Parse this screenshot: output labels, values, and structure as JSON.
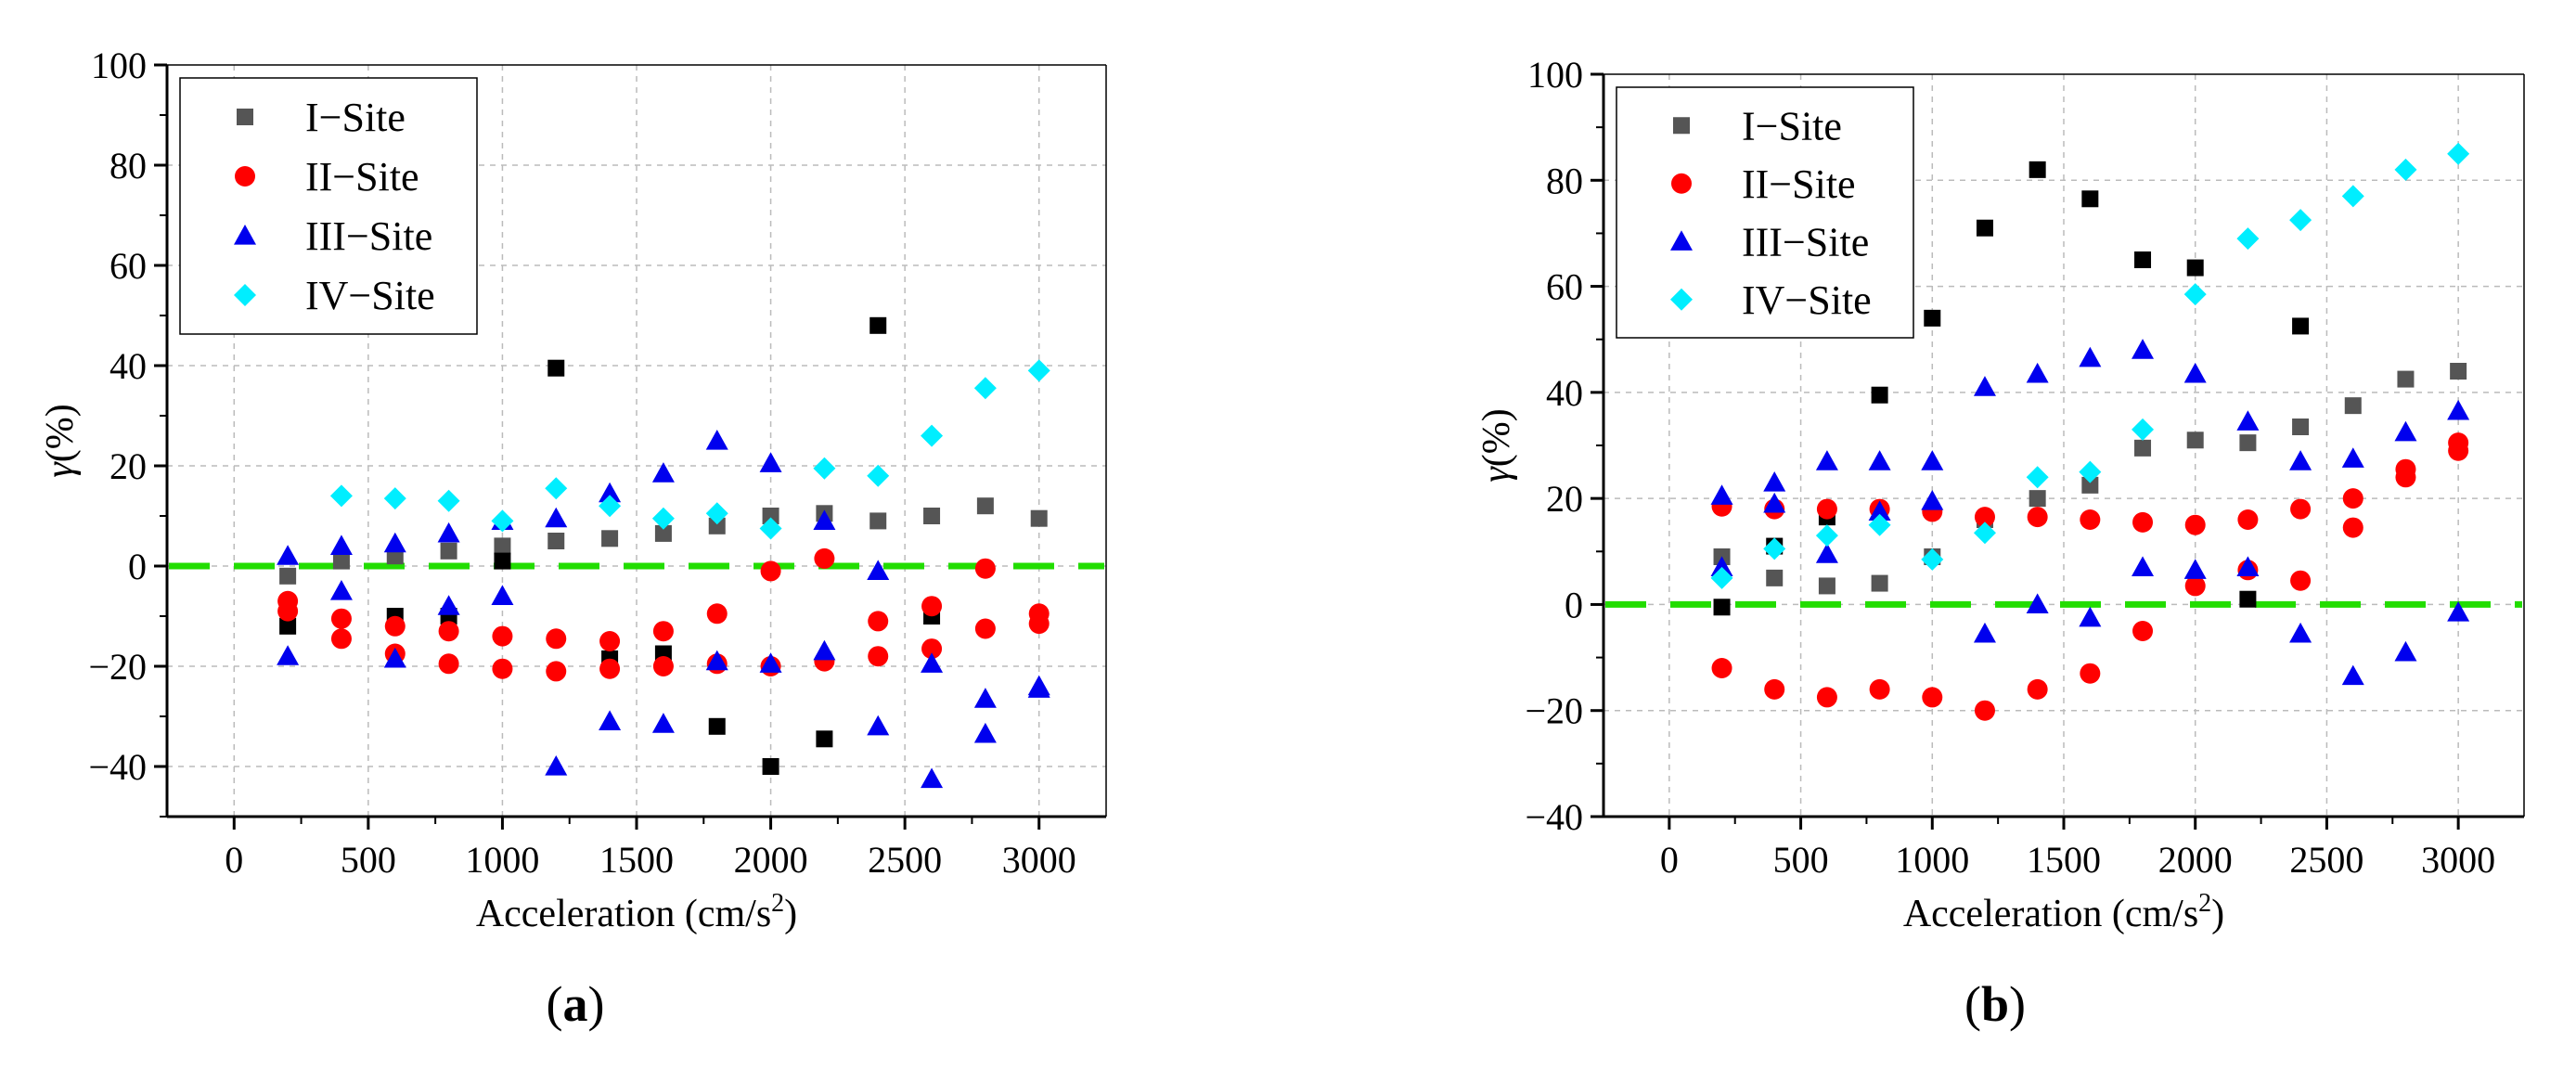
{
  "chart_data": [
    {
      "type": "scatter",
      "panel_label": "a",
      "xlabel": "Acceleration",
      "xunit": "(cm/s",
      "xunit_sup": "2",
      "xunit_close": ")",
      "ylabel": "γ(%)",
      "xlim": [
        -250,
        3250
      ],
      "ylim": [
        -50,
        100
      ],
      "xticks": [
        0,
        500,
        1000,
        1500,
        2000,
        2500,
        3000
      ],
      "yticks": [
        -40,
        -20,
        0,
        20,
        40,
        60,
        80,
        100
      ],
      "ytick_labels": [
        "−40",
        "−20",
        "0",
        "20",
        "40",
        "60",
        "80",
        "100"
      ],
      "grid": true,
      "legend_position": "top-left",
      "reference_line": {
        "y": 0,
        "color": "#22dd00",
        "style": "dashed"
      },
      "series": [
        {
          "name": "I−Site",
          "marker": "square",
          "color": "#555555",
          "points": [
            [
              200,
              -2
            ],
            [
              400,
              1
            ],
            [
              600,
              2
            ],
            [
              800,
              3
            ],
            [
              1000,
              4
            ],
            [
              1200,
              5
            ],
            [
              1400,
              5.5
            ],
            [
              1600,
              6.5
            ],
            [
              1800,
              8
            ],
            [
              2000,
              10
            ],
            [
              2200,
              10.5
            ],
            [
              2400,
              9
            ],
            [
              2600,
              10
            ],
            [
              2800,
              12
            ],
            [
              3000,
              9.5
            ]
          ]
        },
        {
          "name": "I−Site black",
          "marker": "square",
          "color": "#000000",
          "legend": false,
          "points": [
            [
              200,
              -12
            ],
            [
              600,
              -10
            ],
            [
              800,
              -10
            ],
            [
              1000,
              1
            ],
            [
              1200,
              39.5
            ],
            [
              1400,
              -18.5
            ],
            [
              1600,
              -17.5
            ],
            [
              1800,
              -32
            ],
            [
              2000,
              -40
            ],
            [
              2200,
              -34.5
            ],
            [
              2400,
              48
            ],
            [
              2600,
              -10
            ]
          ]
        },
        {
          "name": "II−Site",
          "marker": "circle",
          "color": "#ff0000",
          "points": [
            [
              200,
              -7
            ],
            [
              200,
              -9
            ],
            [
              400,
              -10.5
            ],
            [
              400,
              -14.5
            ],
            [
              600,
              -12
            ],
            [
              600,
              -17.5
            ],
            [
              800,
              -13
            ],
            [
              800,
              -19.5
            ],
            [
              1000,
              -14
            ],
            [
              1000,
              -20.5
            ],
            [
              1200,
              -14.5
            ],
            [
              1200,
              -21
            ],
            [
              1400,
              -15
            ],
            [
              1400,
              -20.5
            ],
            [
              1600,
              -13
            ],
            [
              1600,
              -20
            ],
            [
              1800,
              -9.5
            ],
            [
              1800,
              -19.5
            ],
            [
              2000,
              -1
            ],
            [
              2000,
              -20
            ],
            [
              2200,
              1.5
            ],
            [
              2200,
              -19
            ],
            [
              2400,
              -11
            ],
            [
              2400,
              -18
            ],
            [
              2600,
              -8
            ],
            [
              2600,
              -16.5
            ],
            [
              2800,
              -0.5
            ],
            [
              2800,
              -12.5
            ],
            [
              3000,
              -9.5
            ],
            [
              3000,
              -11.5
            ]
          ]
        },
        {
          "name": "III−Site",
          "marker": "triangle",
          "color": "#0000ee",
          "points": [
            [
              200,
              2
            ],
            [
              200,
              -18
            ],
            [
              400,
              4
            ],
            [
              400,
              -5
            ],
            [
              600,
              4.5
            ],
            [
              600,
              -18.5
            ],
            [
              800,
              6.5
            ],
            [
              800,
              -8
            ],
            [
              1000,
              9
            ],
            [
              1000,
              -6
            ],
            [
              1200,
              9.5
            ],
            [
              1200,
              -40
            ],
            [
              1400,
              14.5
            ],
            [
              1400,
              -31
            ],
            [
              1600,
              18.5
            ],
            [
              1600,
              -31.5
            ],
            [
              1800,
              25
            ],
            [
              1800,
              -19
            ],
            [
              2000,
              20.5
            ],
            [
              2000,
              -19.5
            ],
            [
              2200,
              9
            ],
            [
              2200,
              -17
            ],
            [
              2400,
              -1
            ],
            [
              2400,
              -32
            ],
            [
              2600,
              -19.5
            ],
            [
              2600,
              -42.5
            ],
            [
              2800,
              -26.5
            ],
            [
              2800,
              -33.5
            ],
            [
              3000,
              -24
            ],
            [
              3000,
              -24.5
            ]
          ]
        },
        {
          "name": "IV−Site",
          "marker": "diamond",
          "color": "#00eeff",
          "points": [
            [
              400,
              14
            ],
            [
              600,
              13.5
            ],
            [
              800,
              13
            ],
            [
              1000,
              9
            ],
            [
              1200,
              15.5
            ],
            [
              1400,
              12
            ],
            [
              1600,
              9.5
            ],
            [
              1800,
              10.5
            ],
            [
              2000,
              7.5
            ],
            [
              2200,
              19.5
            ],
            [
              2400,
              18
            ],
            [
              2600,
              26
            ],
            [
              2800,
              35.5
            ],
            [
              3000,
              39
            ]
          ]
        }
      ]
    },
    {
      "type": "scatter",
      "panel_label": "b",
      "xlabel": "Acceleration",
      "xunit": "(cm/s",
      "xunit_sup": "2",
      "xunit_close": ")",
      "ylabel": "γ(%)",
      "xlim": [
        -250,
        3250
      ],
      "ylim": [
        -40,
        100
      ],
      "xticks": [
        0,
        500,
        1000,
        1500,
        2000,
        2500,
        3000
      ],
      "yticks": [
        -40,
        -20,
        0,
        20,
        40,
        60,
        80,
        100
      ],
      "ytick_labels": [
        "−40",
        "−20",
        "0",
        "20",
        "40",
        "60",
        "80",
        "100"
      ],
      "grid": true,
      "legend_position": "top-left",
      "reference_line": {
        "y": 0,
        "color": "#22dd00",
        "style": "dashed"
      },
      "series": [
        {
          "name": "I−Site",
          "marker": "square",
          "color": "#555555",
          "points": [
            [
              200,
              9
            ],
            [
              400,
              5
            ],
            [
              600,
              3.5
            ],
            [
              800,
              4
            ],
            [
              1000,
              9
            ],
            [
              1200,
              16
            ],
            [
              1400,
              20
            ],
            [
              1600,
              22.5
            ],
            [
              1800,
              29.5
            ],
            [
              2000,
              31
            ],
            [
              2200,
              30.5
            ],
            [
              2400,
              33.5
            ],
            [
              2600,
              37.5
            ],
            [
              2800,
              42.5
            ],
            [
              3000,
              44
            ]
          ]
        },
        {
          "name": "I−Site black",
          "marker": "square",
          "color": "#000000",
          "legend": false,
          "points": [
            [
              200,
              -0.5
            ],
            [
              400,
              11
            ],
            [
              600,
              16.5
            ],
            [
              800,
              39.5
            ],
            [
              1000,
              54
            ],
            [
              1200,
              71
            ],
            [
              1400,
              82
            ],
            [
              1600,
              76.5
            ],
            [
              1800,
              65
            ],
            [
              2000,
              63.5
            ],
            [
              2200,
              1
            ],
            [
              2400,
              52.5
            ]
          ]
        },
        {
          "name": "II−Site",
          "marker": "circle",
          "color": "#ff0000",
          "points": [
            [
              200,
              -12
            ],
            [
              200,
              18.5
            ],
            [
              400,
              -16
            ],
            [
              400,
              18
            ],
            [
              600,
              -17.5
            ],
            [
              600,
              18
            ],
            [
              800,
              -16
            ],
            [
              800,
              18
            ],
            [
              1000,
              -17.5
            ],
            [
              1000,
              17.5
            ],
            [
              1200,
              -20
            ],
            [
              1200,
              16.5
            ],
            [
              1400,
              -16
            ],
            [
              1400,
              16.5
            ],
            [
              1600,
              -13
            ],
            [
              1600,
              16
            ],
            [
              1800,
              -5
            ],
            [
              1800,
              15.5
            ],
            [
              2000,
              3.5
            ],
            [
              2000,
              15
            ],
            [
              2200,
              6.5
            ],
            [
              2200,
              16
            ],
            [
              2400,
              4.5
            ],
            [
              2400,
              18
            ],
            [
              2600,
              14.5
            ],
            [
              2600,
              20
            ],
            [
              2800,
              24
            ],
            [
              2800,
              25.5
            ],
            [
              3000,
              29
            ],
            [
              3000,
              30.5
            ]
          ]
        },
        {
          "name": "III−Site",
          "marker": "triangle",
          "color": "#0000ee",
          "points": [
            [
              200,
              20.5
            ],
            [
              200,
              7
            ],
            [
              400,
              23
            ],
            [
              400,
              19
            ],
            [
              600,
              27
            ],
            [
              600,
              9.5
            ],
            [
              800,
              27
            ],
            [
              800,
              17.5
            ],
            [
              1000,
              27
            ],
            [
              1000,
              19.5
            ],
            [
              1200,
              41
            ],
            [
              1200,
              -5.5
            ],
            [
              1400,
              43.5
            ],
            [
              1400,
              0
            ],
            [
              1600,
              46.5
            ],
            [
              1600,
              -2.5
            ],
            [
              1800,
              48
            ],
            [
              1800,
              7
            ],
            [
              2000,
              43.5
            ],
            [
              2000,
              6.5
            ],
            [
              2200,
              34.5
            ],
            [
              2200,
              7
            ],
            [
              2400,
              27
            ],
            [
              2400,
              -5.5
            ],
            [
              2600,
              27.5
            ],
            [
              2600,
              -13.5
            ],
            [
              2800,
              32.5
            ],
            [
              2800,
              -9
            ],
            [
              3000,
              36.5
            ],
            [
              3000,
              -1.5
            ]
          ]
        },
        {
          "name": "IV−Site",
          "marker": "diamond",
          "color": "#00eeff",
          "points": [
            [
              200,
              5
            ],
            [
              400,
              10.5
            ],
            [
              600,
              13
            ],
            [
              800,
              15
            ],
            [
              1000,
              8.5
            ],
            [
              1200,
              13.5
            ],
            [
              1400,
              24
            ],
            [
              1600,
              25
            ],
            [
              1800,
              33
            ],
            [
              2000,
              58.5
            ],
            [
              2200,
              69
            ],
            [
              2400,
              72.5
            ],
            [
              2600,
              77
            ],
            [
              2800,
              82
            ],
            [
              3000,
              85
            ]
          ]
        }
      ]
    }
  ]
}
